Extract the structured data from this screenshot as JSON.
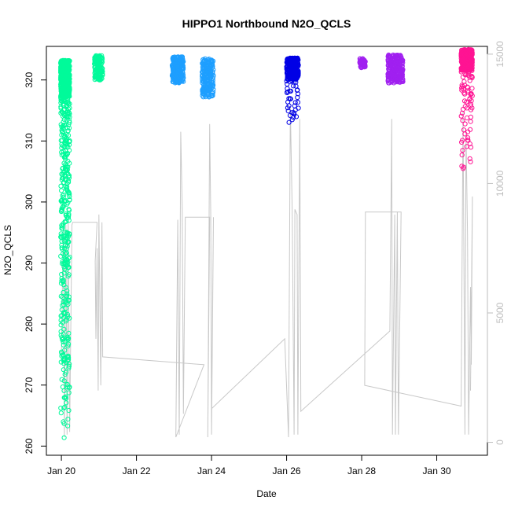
{
  "chart_data": {
    "type": "scatter",
    "title": "HIPPO1 Northbound N2O_QCLS",
    "xlabel": "Date",
    "ylabel": "N2O_QCLS",
    "x_ticks": [
      "Jan 20",
      "Jan 22",
      "Jan 24",
      "Jan 26",
      "Jan 28",
      "Jan 30"
    ],
    "x_tick_values": [
      20,
      22,
      24,
      26,
      28,
      30
    ],
    "xlim": [
      19.6,
      31.35
    ],
    "y_ticks": [
      "260",
      "270",
      "280",
      "290",
      "300",
      "310",
      "320"
    ],
    "y_tick_values": [
      260,
      270,
      280,
      290,
      300,
      310,
      320
    ],
    "ylim": [
      258.5,
      325.5
    ],
    "y2_ticks": [
      "0",
      "5000",
      "10000",
      "15000"
    ],
    "y2_tick_values": [
      0,
      5000,
      10000,
      15000
    ],
    "y2lim": [
      -500,
      15300
    ],
    "y2_unlabeled_note": "",
    "grid": false,
    "legend": "none",
    "series": [
      {
        "color": "#00FA9A",
        "flights": [
          {
            "x_min": 19.98,
            "x_max": 20.22,
            "y_min": 261,
            "y_max": 323.2,
            "n": 950,
            "spread": "wide"
          },
          {
            "x_min": 20.88,
            "x_max": 21.1,
            "y_min": 320,
            "y_max": 324,
            "n": 140,
            "spread": "tight"
          }
        ]
      },
      {
        "color": "#1E9FFF",
        "flights": [
          {
            "x_min": 22.95,
            "x_max": 23.25,
            "y_min": 319.5,
            "y_max": 323.8,
            "n": 260,
            "spread": "tight"
          },
          {
            "x_min": 23.75,
            "x_max": 24.05,
            "y_min": 317.2,
            "y_max": 323.5,
            "n": 220,
            "spread": "tight"
          }
        ]
      },
      {
        "color": "#0000E5",
        "flights": [
          {
            "x_min": 26.0,
            "x_max": 26.32,
            "y_min": 312,
            "y_max": 323.6,
            "n": 300,
            "spread": "tail"
          }
        ]
      },
      {
        "color": "#A020F0",
        "flights": [
          {
            "x_min": 27.95,
            "x_max": 28.1,
            "y_min": 322,
            "y_max": 323.5,
            "n": 60,
            "spread": "tight"
          },
          {
            "x_min": 28.7,
            "x_max": 29.1,
            "y_min": 319.5,
            "y_max": 324.1,
            "n": 260,
            "spread": "tight"
          }
        ]
      },
      {
        "color": "#FF1493",
        "flights": [
          {
            "x_min": 30.65,
            "x_max": 30.95,
            "y_min": 303,
            "y_max": 325,
            "n": 420,
            "spread": "tail"
          }
        ]
      }
    ],
    "altitude_trace": {
      "color": "#C8C8C8",
      "axis": "right",
      "points": [
        [
          20.0,
          3300
        ],
        [
          20.05,
          8500
        ],
        [
          20.08,
          200
        ],
        [
          20.12,
          8400
        ],
        [
          20.15,
          300
        ],
        [
          20.18,
          8600
        ],
        [
          20.22,
          400
        ],
        [
          20.28,
          8400
        ],
        [
          20.3,
          8500
        ],
        [
          20.95,
          8500
        ],
        [
          20.9,
          7000
        ],
        [
          20.92,
          4000
        ],
        [
          20.95,
          7500
        ],
        [
          20.98,
          2000
        ],
        [
          21.0,
          8800
        ],
        [
          21.05,
          2200
        ],
        [
          21.08,
          8500
        ],
        [
          21.1,
          3300
        ],
        [
          23.8,
          3000
        ],
        [
          23.05,
          200
        ],
        [
          23.1,
          8600
        ],
        [
          23.14,
          300
        ],
        [
          23.18,
          12000
        ],
        [
          23.22,
          9000
        ],
        [
          23.25,
          1100
        ],
        [
          23.3,
          8700
        ],
        [
          23.95,
          8700
        ],
        [
          23.9,
          200
        ],
        [
          23.95,
          12300
        ],
        [
          23.98,
          8700
        ],
        [
          24.0,
          300
        ],
        [
          24.05,
          8700
        ],
        [
          24.0,
          1300
        ],
        [
          25.95,
          4000
        ],
        [
          26.05,
          200
        ],
        [
          26.1,
          13000
        ],
        [
          26.15,
          8900
        ],
        [
          26.2,
          300
        ],
        [
          26.22,
          9000
        ],
        [
          26.28,
          8800
        ],
        [
          26.3,
          300
        ],
        [
          26.35,
          12500
        ],
        [
          26.38,
          1200
        ],
        [
          28.75,
          4300
        ],
        [
          28.8,
          12500
        ],
        [
          28.82,
          300
        ],
        [
          28.88,
          8800
        ],
        [
          28.9,
          300
        ],
        [
          28.95,
          8900
        ],
        [
          28.98,
          300
        ],
        [
          29.05,
          8900
        ],
        [
          28.1,
          8900
        ],
        [
          28.08,
          2200
        ],
        [
          30.65,
          1400
        ],
        [
          30.7,
          12800
        ],
        [
          30.75,
          300
        ],
        [
          30.78,
          12000
        ],
        [
          30.82,
          8000
        ],
        [
          30.85,
          300
        ],
        [
          30.9,
          6000
        ],
        [
          30.92,
          3000
        ],
        [
          30.95,
          9500
        ],
        [
          30.9,
          2000
        ]
      ]
    }
  }
}
